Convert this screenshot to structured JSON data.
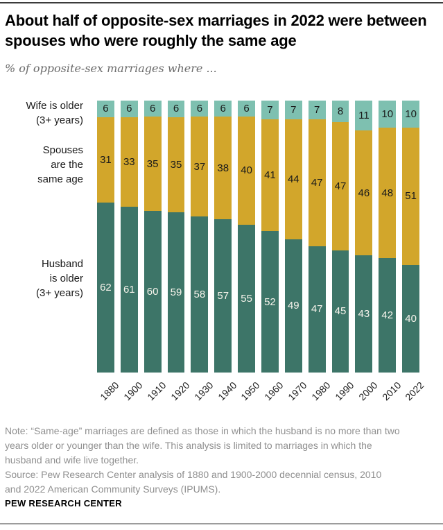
{
  "chart_data": {
    "type": "bar",
    "stacked": true,
    "normalized": true,
    "title": "About half of opposite-sex marriages in 2022 were between spouses who were roughly the same age",
    "subtitle": "% of opposite-sex marriages where ...",
    "grid": false,
    "value_labels": true,
    "legend_position": "left",
    "categories": [
      "1880",
      "1900",
      "1910",
      "1920",
      "1930",
      "1940",
      "1950",
      "1960",
      "1970",
      "1980",
      "1990",
      "2000",
      "2010",
      "2022"
    ],
    "series": [
      {
        "key": "wife",
        "name": "Wife is older (3+ years)",
        "color": "#7ec0b0",
        "label_color": "#1a1a1a",
        "values": [
          6,
          6,
          6,
          6,
          6,
          6,
          6,
          7,
          7,
          7,
          8,
          11,
          10,
          10
        ]
      },
      {
        "key": "same",
        "name": "Spouses are the same age",
        "color": "#d2a62b",
        "label_color": "#1a1a1a",
        "values": [
          31,
          33,
          35,
          35,
          37,
          38,
          40,
          41,
          44,
          47,
          47,
          46,
          48,
          51
        ]
      },
      {
        "key": "husband",
        "name": "Husband is older (3+ years)",
        "color": "#3d7568",
        "label_color": "#f7f4ec",
        "values": [
          62,
          61,
          60,
          59,
          58,
          57,
          55,
          52,
          49,
          47,
          45,
          43,
          42,
          40
        ]
      }
    ]
  },
  "legend": {
    "wife": "Wife is older\n(3+ years)",
    "spouses": "Spouses\nare the\nsame age",
    "husband": "Husband\nis older\n(3+ years)"
  },
  "footer": {
    "note": "Note: “Same-age” marriages are defined as those in which the husband is no more than two\nyears older or younger than the wife. This analysis is limited to marriages in which the\nhusband and wife live together.",
    "source": "Source: Pew Research Center analysis of 1880 and 1900-2000 decennial census, 2010\nand 2022 American Community Surveys (IPUMS).",
    "brand": "PEW RESEARCH CENTER"
  }
}
